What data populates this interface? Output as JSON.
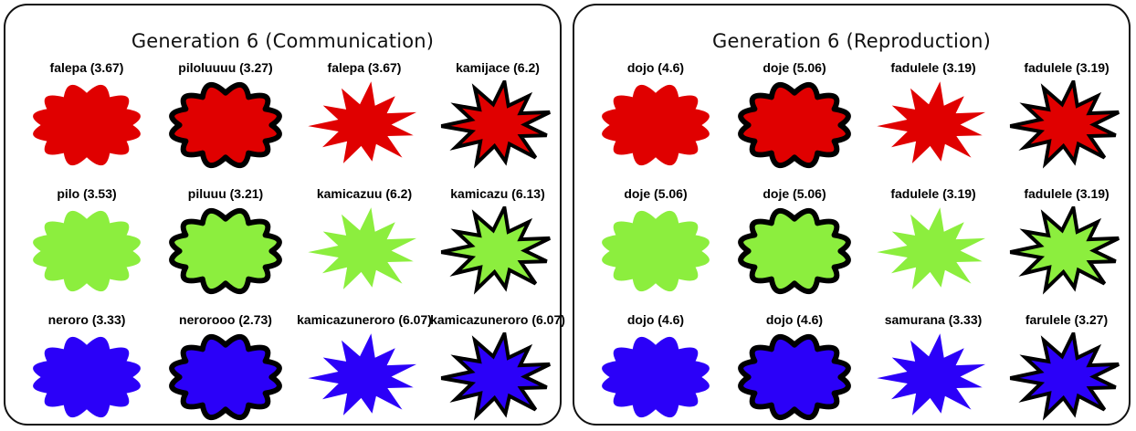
{
  "colors": {
    "red": "#e00000",
    "green": "#8cee3e",
    "blue": "#2b00f8"
  },
  "panels": [
    {
      "title": "Generation  6 (Communication)",
      "rows": [
        {
          "color": "red",
          "cells": [
            {
              "label": "falepa (3.67)",
              "shape": "cloud",
              "outline": false
            },
            {
              "label": "piloluuuu (3.27)",
              "shape": "cloud",
              "outline": true
            },
            {
              "label": "falepa (3.67)",
              "shape": "star",
              "outline": false
            },
            {
              "label": "kamijace (6.2)",
              "shape": "star",
              "outline": true
            }
          ]
        },
        {
          "color": "green",
          "cells": [
            {
              "label": "pilo (3.53)",
              "shape": "cloud",
              "outline": false
            },
            {
              "label": "piluuu (3.21)",
              "shape": "cloud",
              "outline": true
            },
            {
              "label": "kamicazuu (6.2)",
              "shape": "star",
              "outline": false
            },
            {
              "label": "kamicazu (6.13)",
              "shape": "star",
              "outline": true
            }
          ]
        },
        {
          "color": "blue",
          "cells": [
            {
              "label": "neroro (3.33)",
              "shape": "cloud",
              "outline": false
            },
            {
              "label": "nerorooo (2.73)",
              "shape": "cloud",
              "outline": true
            },
            {
              "label": "kamicazuneroro (6.07)",
              "shape": "star",
              "outline": false
            },
            {
              "label": "kamicazuneroro (6.07)",
              "shape": "star",
              "outline": true
            }
          ]
        }
      ]
    },
    {
      "title": "Generation  6 (Reproduction)",
      "rows": [
        {
          "color": "red",
          "cells": [
            {
              "label": "dojo (4.6)",
              "shape": "cloud",
              "outline": false
            },
            {
              "label": "doje (5.06)",
              "shape": "cloud",
              "outline": true
            },
            {
              "label": "fadulele (3.19)",
              "shape": "star",
              "outline": false
            },
            {
              "label": "fadulele (3.19)",
              "shape": "star",
              "outline": true
            }
          ]
        },
        {
          "color": "green",
          "cells": [
            {
              "label": "doje (5.06)",
              "shape": "cloud",
              "outline": false
            },
            {
              "label": "doje (5.06)",
              "shape": "cloud",
              "outline": true
            },
            {
              "label": "fadulele (3.19)",
              "shape": "star",
              "outline": false
            },
            {
              "label": "fadulele (3.19)",
              "shape": "star",
              "outline": true
            }
          ]
        },
        {
          "color": "blue",
          "cells": [
            {
              "label": "dojo (4.6)",
              "shape": "cloud",
              "outline": false
            },
            {
              "label": "dojo (4.6)",
              "shape": "cloud",
              "outline": true
            },
            {
              "label": "samurana (3.33)",
              "shape": "star",
              "outline": false
            },
            {
              "label": "farulele (3.27)",
              "shape": "star",
              "outline": true
            }
          ]
        }
      ]
    }
  ]
}
